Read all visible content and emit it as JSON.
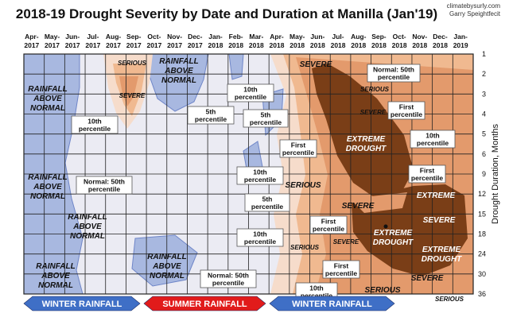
{
  "chart_data": {
    "type": "heatmap",
    "title": "2018-19 Drought Severity by Date and Duration at Manilla (Jan'19)",
    "credit_lines": [
      "climatebysurly.com",
      "Garry Speightfecit"
    ],
    "ylabel": "Drought Duration, Months",
    "x_months": [
      [
        "Apr-",
        "2017"
      ],
      [
        "May-",
        "2017"
      ],
      [
        "Jun-",
        "2017"
      ],
      [
        "Jul-",
        "2017"
      ],
      [
        "Aug-",
        "2017"
      ],
      [
        "Sep-",
        "2017"
      ],
      [
        "Oct-",
        "2017"
      ],
      [
        "Nov-",
        "2017"
      ],
      [
        "Dec-",
        "2017"
      ],
      [
        "Jan-",
        "2018"
      ],
      [
        "Feb-",
        "2018"
      ],
      [
        "Mar-",
        "2018"
      ],
      [
        "Apr-",
        "2018"
      ],
      [
        "May-",
        "2018"
      ],
      [
        "Jun-",
        "2018"
      ],
      [
        "Jul-",
        "2018"
      ],
      [
        "Aug-",
        "2018"
      ],
      [
        "Sep-",
        "2018"
      ],
      [
        "Oct-",
        "2018"
      ],
      [
        "Nov-",
        "2018"
      ],
      [
        "Dec-",
        "2018"
      ],
      [
        "Jan-",
        "2019"
      ]
    ],
    "y_durations": [
      "1",
      "2",
      "3",
      "4",
      "5",
      "6",
      "9",
      "12",
      "15",
      "18",
      "24",
      "30",
      "36"
    ],
    "colors": {
      "wet": "#a8b8e0",
      "wet_edge": "#6f86c8",
      "near_normal": "#ebebf3",
      "tenth": "#f6dccb",
      "fifth": "#f0b990",
      "first": "#e39a6c",
      "extreme": "#7a3e17",
      "grid": "#222222",
      "winter_band": "#3f6fc6",
      "summer_band": "#e11b1b"
    },
    "zone_labels": {
      "serious": "SERIOUS",
      "severe": "SEVERE",
      "extreme_drought_1": "EXTREME",
      "extreme_drought_2": "DROUGHT",
      "extreme": "EXTREME",
      "rainfall": "RAINFALL",
      "above": "ABOVE",
      "normal": "NORMAL"
    },
    "callouts": {
      "tenth": [
        "10th",
        "percentile"
      ],
      "fifth": [
        "5th",
        "percentile"
      ],
      "first": [
        "First",
        "percentile"
      ],
      "normal": [
        "Normal: 50th",
        "percentile"
      ]
    },
    "season_bands": [
      {
        "label": "WINTER RAINFALL",
        "kind": "winter"
      },
      {
        "label": "SUMMER RAINFALL",
        "kind": "summer"
      },
      {
        "label": "WINTER RAINFALL",
        "kind": "winter"
      }
    ],
    "legend": "none",
    "grid": true
  }
}
